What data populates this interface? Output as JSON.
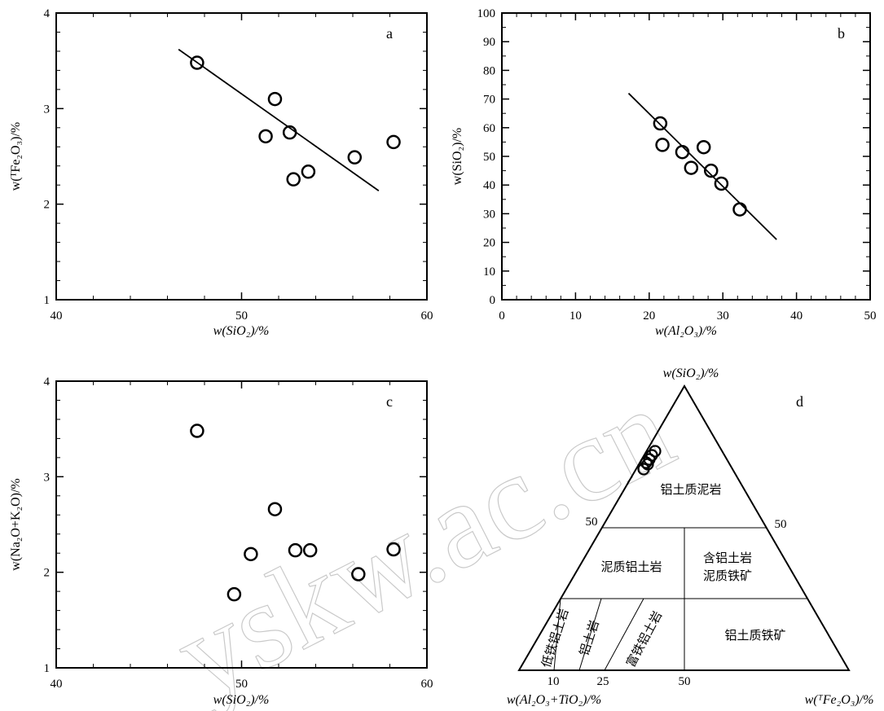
{
  "chart_data": [
    {
      "panel": "a",
      "type": "scatter",
      "xlabel": "w(SiO₂)/%",
      "ylabel": "w(ᵀFe₂O₃)/%",
      "xlim": [
        40,
        60
      ],
      "ylim": [
        1,
        4
      ],
      "xticks": [
        "40",
        "50",
        "60"
      ],
      "yticks": [
        "1",
        "2",
        "3",
        "4"
      ],
      "points": [
        {
          "x": 47.6,
          "y": 3.48
        },
        {
          "x": 51.8,
          "y": 3.1
        },
        {
          "x": 51.3,
          "y": 2.71
        },
        {
          "x": 52.6,
          "y": 2.75
        },
        {
          "x": 52.8,
          "y": 2.26
        },
        {
          "x": 53.6,
          "y": 2.34
        },
        {
          "x": 56.1,
          "y": 2.49
        },
        {
          "x": 58.2,
          "y": 2.65
        }
      ],
      "trendline": [
        {
          "x": 46.6,
          "y": 3.62
        },
        {
          "x": 57.4,
          "y": 2.14
        }
      ]
    },
    {
      "panel": "b",
      "type": "scatter",
      "xlabel": "w(Al₂O₃)/%",
      "ylabel": "w(SiO₂)/%",
      "xlim": [
        0,
        50
      ],
      "ylim": [
        0,
        100
      ],
      "xticks": [
        "0",
        "10",
        "20",
        "30",
        "40",
        "50"
      ],
      "yticks": [
        "0",
        "10",
        "20",
        "30",
        "40",
        "50",
        "60",
        "70",
        "80",
        "90",
        "100"
      ],
      "points": [
        {
          "x": 21.5,
          "y": 61.5
        },
        {
          "x": 21.8,
          "y": 54.0
        },
        {
          "x": 24.5,
          "y": 51.5
        },
        {
          "x": 25.7,
          "y": 46.0
        },
        {
          "x": 27.4,
          "y": 53.2
        },
        {
          "x": 28.4,
          "y": 45.0
        },
        {
          "x": 29.8,
          "y": 40.5
        },
        {
          "x": 32.3,
          "y": 31.5
        }
      ],
      "trendline": [
        {
          "x": 17.2,
          "y": 72.0
        },
        {
          "x": 37.3,
          "y": 21.0
        }
      ]
    },
    {
      "panel": "c",
      "type": "scatter",
      "xlabel": "w(SiO₂)/%",
      "ylabel": "w(Na₂O+K₂O)/%",
      "xlim": [
        40,
        60
      ],
      "ylim": [
        1,
        4
      ],
      "xticks": [
        "40",
        "50",
        "60"
      ],
      "yticks": [
        "1",
        "2",
        "3",
        "4"
      ],
      "points": [
        {
          "x": 47.6,
          "y": 3.48
        },
        {
          "x": 51.8,
          "y": 2.66
        },
        {
          "x": 50.5,
          "y": 2.19
        },
        {
          "x": 49.6,
          "y": 1.77
        },
        {
          "x": 52.9,
          "y": 2.23
        },
        {
          "x": 53.7,
          "y": 2.23
        },
        {
          "x": 56.3,
          "y": 1.98
        },
        {
          "x": 58.2,
          "y": 2.24
        }
      ]
    },
    {
      "panel": "d",
      "type": "ternary",
      "apex_label": "w(SiO₂)/%",
      "left_label": "w(Al₂O₃+TiO₂)/%",
      "right_label": "w(ᵀFe₂O₃)/%",
      "edge_ticks_left": [
        "50"
      ],
      "edge_ticks_right": [
        "50"
      ],
      "base_ticks": [
        "10",
        "25",
        "50"
      ],
      "fields": [
        "铝土质泥岩",
        "泥质铝土岩",
        "含铝土岩",
        "泥质铁矿",
        "低铁铝土岩",
        "铝土岩",
        "富铁铝土岩",
        "铝土质铁矿"
      ],
      "points_count": 6
    }
  ],
  "watermark": "yskw.ac.cn"
}
